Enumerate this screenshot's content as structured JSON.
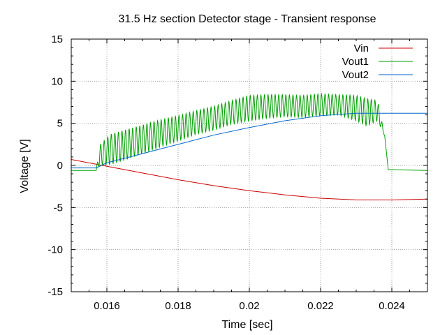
{
  "chart_data": {
    "type": "line",
    "title": "31.5 Hz section Detector stage - Transient response",
    "xlabel": "Time [sec]",
    "ylabel": "Voltage [V]",
    "xlim": [
      0.015,
      0.025
    ],
    "ylim": [
      -15,
      15
    ],
    "x_ticks": [
      {
        "value": 0.016,
        "label": "0.016"
      },
      {
        "value": 0.018,
        "label": "0.018"
      },
      {
        "value": 0.02,
        "label": "0.02"
      },
      {
        "value": 0.022,
        "label": "0.022"
      },
      {
        "value": 0.024,
        "label": "0.024"
      }
    ],
    "y_ticks": [
      {
        "value": 15,
        "label": "15"
      },
      {
        "value": 10,
        "label": "10"
      },
      {
        "value": 5,
        "label": "5"
      },
      {
        "value": 0,
        "label": "0"
      },
      {
        "value": -5,
        "label": "-5"
      },
      {
        "value": -10,
        "label": "-10"
      },
      {
        "value": -15,
        "label": "-15"
      }
    ],
    "grid": true,
    "legend_position": "top-right",
    "series": [
      {
        "name": "Vin",
        "color": "#cc0000",
        "x": [
          0.015,
          0.016,
          0.017,
          0.018,
          0.019,
          0.02,
          0.021,
          0.022,
          0.023,
          0.024,
          0.025
        ],
        "y": [
          0.7,
          -0.1,
          -0.9,
          -1.7,
          -2.4,
          -3.0,
          -3.5,
          -3.9,
          -4.1,
          -4.1,
          -4.0
        ]
      },
      {
        "name": "Vout1",
        "color": "#00a000",
        "x": [
          0.015,
          0.0157,
          0.0158,
          0.0161,
          0.0165,
          0.017,
          0.0175,
          0.018,
          0.0185,
          0.019,
          0.0195,
          0.02,
          0.0205,
          0.021,
          0.0215,
          0.022,
          0.0225,
          0.023,
          0.0233,
          0.0236,
          0.0238,
          0.0239,
          0.025
        ],
        "y": [
          -0.6,
          -0.6,
          1.2,
          1.9,
          2.4,
          3.1,
          3.8,
          4.4,
          5.1,
          5.6,
          6.3,
          6.8,
          7.0,
          7.1,
          7.0,
          7.2,
          7.2,
          6.8,
          6.3,
          6.5,
          3.5,
          -0.5,
          -0.6
        ],
        "oscillation_amplitude": [
          0,
          0,
          1.2,
          1.8,
          1.8,
          1.7,
          1.6,
          1.5,
          1.4,
          1.4,
          1.4,
          1.5,
          1.4,
          1.3,
          1.3,
          1.3,
          1.2,
          1.5,
          1.6,
          1.2,
          0,
          0,
          0
        ],
        "oscillation_period": 0.0001
      },
      {
        "name": "Vout2",
        "color": "#0066cc",
        "x": [
          0.015,
          0.0157,
          0.016,
          0.017,
          0.018,
          0.019,
          0.02,
          0.021,
          0.022,
          0.023,
          0.024,
          0.025
        ],
        "y": [
          -0.3,
          -0.3,
          0.3,
          1.4,
          2.5,
          3.6,
          4.5,
          5.3,
          5.9,
          6.2,
          6.2,
          6.2
        ]
      }
    ]
  }
}
